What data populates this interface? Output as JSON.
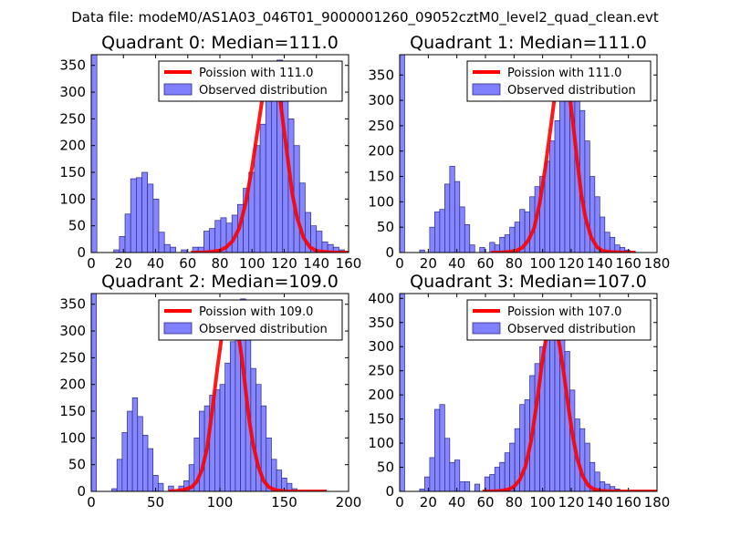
{
  "figure": {
    "suptitle": "Data file: modeM0/AS1A03_046T01_9000001260_09052cztM0_level2_quad_clean.evt"
  },
  "colors": {
    "bar_fill": "#8080ff",
    "bar_edge": "#2a2a8a",
    "poisson_line": "#ff0000",
    "axis": "#000000"
  },
  "chart_data": [
    {
      "type": "bar",
      "title": "Quadrant 0: Median=111.0",
      "xlim": [
        0,
        160
      ],
      "ylim": [
        0,
        370
      ],
      "xticks": [
        0,
        20,
        40,
        60,
        80,
        100,
        120,
        140,
        160
      ],
      "yticks": [
        0,
        50,
        100,
        150,
        200,
        250,
        300,
        350
      ],
      "legend": {
        "position": "top-right",
        "line_label": "Poission with 111.0",
        "bar_label": "Observed distribution"
      },
      "bin_width": 3.5,
      "bins_start": [
        0,
        14,
        17.5,
        21,
        24.5,
        28,
        31.5,
        35,
        38.5,
        42,
        45.5,
        49,
        56,
        63,
        66.5,
        70,
        73.5,
        77,
        80.5,
        84,
        87.5,
        91,
        94.5,
        98,
        101.5,
        105,
        108.5,
        112,
        115.5,
        119,
        122.5,
        126,
        129.5,
        133,
        136.5,
        140,
        143.5,
        147,
        150.5,
        154
      ],
      "counts": [
        370,
        5,
        30,
        72,
        138,
        140,
        150,
        128,
        100,
        38,
        15,
        10,
        5,
        10,
        10,
        40,
        45,
        60,
        65,
        55,
        70,
        90,
        120,
        150,
        200,
        240,
        300,
        320,
        360,
        305,
        250,
        200,
        130,
        75,
        50,
        40,
        20,
        15,
        10,
        5
      ],
      "poisson": {
        "x": [
          62,
          68,
          74,
          80,
          84,
          88,
          92,
          96,
          100,
          104,
          107,
          110,
          113,
          116,
          119,
          122,
          125,
          128,
          132,
          136,
          140,
          146,
          152,
          160
        ],
        "y": [
          0,
          0,
          1,
          4,
          10,
          22,
          45,
          92,
          160,
          240,
          300,
          345,
          355,
          320,
          250,
          180,
          110,
          65,
          28,
          10,
          3,
          1,
          0,
          0
        ]
      }
    },
    {
      "type": "bar",
      "title": "Quadrant 1: Median=111.0",
      "xlim": [
        0,
        180
      ],
      "ylim": [
        0,
        390
      ],
      "xticks": [
        0,
        20,
        40,
        60,
        80,
        100,
        120,
        140,
        160,
        180
      ],
      "yticks": [
        0,
        50,
        100,
        150,
        200,
        250,
        300,
        350
      ],
      "legend": {
        "position": "top-right",
        "line_label": "Poission with 111.0",
        "bar_label": "Observed distribution"
      },
      "bin_width": 3.5,
      "bins_start": [
        0,
        14,
        21,
        24.5,
        28,
        31.5,
        35,
        38.5,
        42,
        45.5,
        49,
        56,
        63,
        66.5,
        70,
        73.5,
        77,
        80.5,
        84,
        87.5,
        91,
        94.5,
        98,
        101.5,
        105,
        108.5,
        112,
        115.5,
        119,
        122.5,
        126,
        129.5,
        133,
        136.5,
        140,
        143.5,
        147,
        150.5,
        154,
        157.5
      ],
      "counts": [
        390,
        5,
        50,
        80,
        85,
        135,
        170,
        140,
        90,
        55,
        15,
        10,
        20,
        15,
        30,
        35,
        50,
        60,
        85,
        80,
        110,
        130,
        150,
        180,
        220,
        260,
        300,
        340,
        360,
        330,
        280,
        220,
        150,
        110,
        70,
        40,
        30,
        15,
        10,
        5
      ],
      "poisson": {
        "x": [
          64,
          70,
          76,
          82,
          86,
          90,
          94,
          98,
          102,
          106,
          109,
          112,
          115,
          118,
          121,
          124,
          127,
          130,
          134,
          138,
          142,
          148,
          156,
          165
        ],
        "y": [
          0,
          0,
          1,
          4,
          10,
          24,
          48,
          98,
          170,
          255,
          320,
          360,
          372,
          330,
          260,
          185,
          115,
          68,
          30,
          11,
          3,
          1,
          0,
          0
        ]
      }
    },
    {
      "type": "bar",
      "title": "Quadrant 2: Median=109.0",
      "xlim": [
        0,
        200
      ],
      "ylim": [
        0,
        370
      ],
      "xticks": [
        0,
        50,
        100,
        150,
        200
      ],
      "yticks": [
        0,
        50,
        100,
        150,
        200,
        250,
        300,
        350
      ],
      "legend": {
        "position": "top-right",
        "line_label": "Poission with 109.0",
        "bar_label": "Observed distribution"
      },
      "bin_width": 4,
      "bins_start": [
        0,
        16,
        20,
        24,
        28,
        32,
        36,
        40,
        44,
        48,
        52,
        60,
        68,
        72,
        76,
        80,
        84,
        88,
        92,
        96,
        100,
        104,
        108,
        112,
        116,
        120,
        124,
        128,
        132,
        136,
        140,
        144,
        148,
        152,
        156
      ],
      "counts": [
        370,
        5,
        60,
        110,
        150,
        175,
        140,
        105,
        80,
        30,
        15,
        10,
        10,
        20,
        50,
        100,
        150,
        160,
        180,
        190,
        200,
        240,
        280,
        330,
        360,
        300,
        230,
        200,
        160,
        100,
        60,
        40,
        25,
        15,
        5
      ],
      "poisson": {
        "x": [
          60,
          66,
          72,
          78,
          82,
          86,
          90,
          94,
          98,
          102,
          105,
          108,
          111,
          114,
          117,
          120,
          123,
          126,
          130,
          134,
          138,
          144,
          152,
          160,
          170,
          183
        ],
        "y": [
          0,
          1,
          3,
          8,
          18,
          40,
          80,
          150,
          230,
          300,
          340,
          355,
          340,
          300,
          250,
          190,
          130,
          85,
          45,
          20,
          8,
          2,
          0,
          0,
          0,
          0
        ]
      }
    },
    {
      "type": "bar",
      "title": "Quadrant 3: Median=107.0",
      "xlim": [
        0,
        180
      ],
      "ylim": [
        0,
        410
      ],
      "xticks": [
        0,
        20,
        40,
        60,
        80,
        100,
        120,
        140,
        160,
        180
      ],
      "yticks": [
        0,
        50,
        100,
        150,
        200,
        250,
        300,
        350,
        400
      ],
      "legend": {
        "position": "top-right",
        "line_label": "Poission with 107.0",
        "bar_label": "Observed distribution"
      },
      "bin_width": 3.5,
      "bins_start": [
        0,
        14,
        17.5,
        21,
        24.5,
        28,
        31.5,
        35,
        38.5,
        42,
        45.5,
        52.5,
        59.5,
        63,
        66.5,
        70,
        73.5,
        77,
        80.5,
        84,
        87.5,
        91,
        94.5,
        98,
        101.5,
        105,
        108.5,
        112,
        115.5,
        119,
        122.5,
        126,
        129.5,
        133,
        136.5,
        140,
        143.5,
        147,
        150.5
      ],
      "counts": [
        410,
        5,
        30,
        70,
        170,
        180,
        110,
        60,
        65,
        20,
        20,
        15,
        30,
        35,
        50,
        60,
        80,
        100,
        130,
        180,
        190,
        240,
        265,
        300,
        320,
        340,
        360,
        320,
        290,
        210,
        150,
        130,
        100,
        60,
        40,
        20,
        15,
        10,
        5
      ],
      "poisson": {
        "x": [
          58,
          64,
          70,
          76,
          80,
          84,
          88,
          92,
          96,
          100,
          103,
          106,
          109,
          112,
          115,
          118,
          121,
          124,
          128,
          132,
          136,
          142,
          150,
          160,
          170,
          180
        ],
        "y": [
          0,
          0,
          1,
          4,
          10,
          24,
          52,
          105,
          185,
          275,
          330,
          355,
          345,
          300,
          240,
          175,
          115,
          70,
          32,
          12,
          4,
          1,
          0,
          0,
          0,
          0
        ]
      }
    }
  ]
}
